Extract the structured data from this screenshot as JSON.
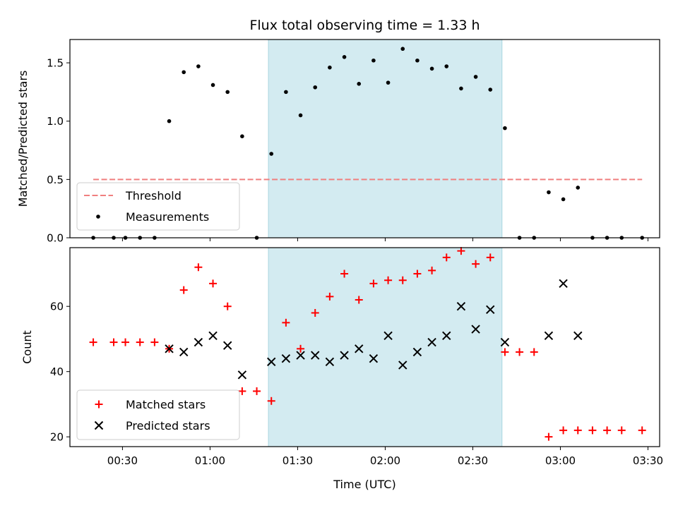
{
  "chart_data": [
    {
      "type": "scatter",
      "title": "Flux total observing time = 1.33 h",
      "xlabel": "",
      "ylabel": "Matched/Predicted stars",
      "xlim": [
        "00:12",
        "03:34"
      ],
      "ylim": [
        0,
        1.7
      ],
      "y_ticks": [
        "0.0",
        "0.5",
        "1.0",
        "1.5"
      ],
      "highlight_span": [
        "01:20",
        "02:40"
      ],
      "threshold": {
        "name": "Threshold",
        "y": 0.5,
        "x_range": [
          "00:20",
          "03:28"
        ],
        "color": "#f07f7f",
        "style": "dashed"
      },
      "legend": {
        "placement": "lower-left",
        "entries": [
          "Threshold",
          "Measurements"
        ]
      },
      "series": [
        {
          "name": "Measurements",
          "marker": "dot",
          "color": "#000000",
          "x": [
            "00:20",
            "00:27",
            "00:31",
            "00:36",
            "00:41",
            "00:46",
            "00:51",
            "00:56",
            "01:01",
            "01:06",
            "01:11",
            "01:16",
            "01:21",
            "01:26",
            "01:31",
            "01:36",
            "01:41",
            "01:46",
            "01:51",
            "01:56",
            "02:01",
            "02:06",
            "02:11",
            "02:16",
            "02:21",
            "02:26",
            "02:31",
            "02:36",
            "02:41",
            "02:46",
            "02:51",
            "02:56",
            "03:01",
            "03:06",
            "03:11",
            "03:16",
            "03:21",
            "03:28"
          ],
          "y": [
            0,
            0,
            0,
            0,
            0,
            1.0,
            1.42,
            1.47,
            1.31,
            1.25,
            0.87,
            0,
            0.72,
            1.25,
            1.05,
            1.29,
            1.46,
            1.55,
            1.32,
            1.52,
            1.33,
            1.62,
            1.52,
            1.45,
            1.47,
            1.28,
            1.38,
            1.27,
            0.94,
            0,
            0,
            0.39,
            0.33,
            0.43,
            0,
            0,
            0,
            0
          ]
        }
      ]
    },
    {
      "type": "scatter",
      "title": "",
      "xlabel": "Time (UTC)",
      "ylabel": "Count",
      "xlim": [
        "00:12",
        "03:34"
      ],
      "ylim": [
        17,
        78
      ],
      "x_ticks": [
        "00:30",
        "01:00",
        "01:30",
        "02:00",
        "02:30",
        "03:00",
        "03:30"
      ],
      "y_ticks": [
        "20",
        "40",
        "60"
      ],
      "highlight_span": [
        "01:20",
        "02:40"
      ],
      "legend": {
        "placement": "lower-left",
        "entries": [
          "Matched stars",
          "Predicted stars"
        ]
      },
      "series": [
        {
          "name": "Matched stars",
          "marker": "plus",
          "color": "#ff0000",
          "x": [
            "00:20",
            "00:27",
            "00:31",
            "00:36",
            "00:41",
            "00:46",
            "00:51",
            "00:56",
            "01:01",
            "01:06",
            "01:11",
            "01:16",
            "01:21",
            "01:26",
            "01:31",
            "01:36",
            "01:41",
            "01:46",
            "01:51",
            "01:56",
            "02:01",
            "02:06",
            "02:11",
            "02:16",
            "02:21",
            "02:26",
            "02:31",
            "02:36",
            "02:41",
            "02:46",
            "02:51",
            "02:56",
            "03:01",
            "03:06",
            "03:11",
            "03:16",
            "03:21",
            "03:28"
          ],
          "y": [
            49,
            49,
            49,
            49,
            49,
            47,
            65,
            72,
            67,
            60,
            34,
            34,
            31,
            55,
            47,
            58,
            63,
            70,
            62,
            67,
            68,
            68,
            70,
            71,
            75,
            77,
            73,
            75,
            46,
            46,
            46,
            20,
            22,
            22,
            22,
            22,
            22,
            22
          ]
        },
        {
          "name": "Predicted stars",
          "marker": "x",
          "color": "#000000",
          "x": [
            "00:46",
            "00:51",
            "00:56",
            "01:01",
            "01:06",
            "01:11",
            "01:21",
            "01:26",
            "01:31",
            "01:36",
            "01:41",
            "01:46",
            "01:51",
            "01:56",
            "02:01",
            "02:06",
            "02:11",
            "02:16",
            "02:21",
            "02:26",
            "02:31",
            "02:36",
            "02:41",
            "02:56",
            "03:01",
            "03:06"
          ],
          "y": [
            47,
            46,
            49,
            51,
            48,
            39,
            43,
            44,
            45,
            45,
            43,
            45,
            47,
            44,
            51,
            42,
            46,
            49,
            51,
            60,
            53,
            59,
            49,
            51,
            67,
            51
          ]
        }
      ]
    }
  ],
  "colors": {
    "highlight": "#d3ebf1",
    "highlight_edge": "#a9d6e0"
  }
}
